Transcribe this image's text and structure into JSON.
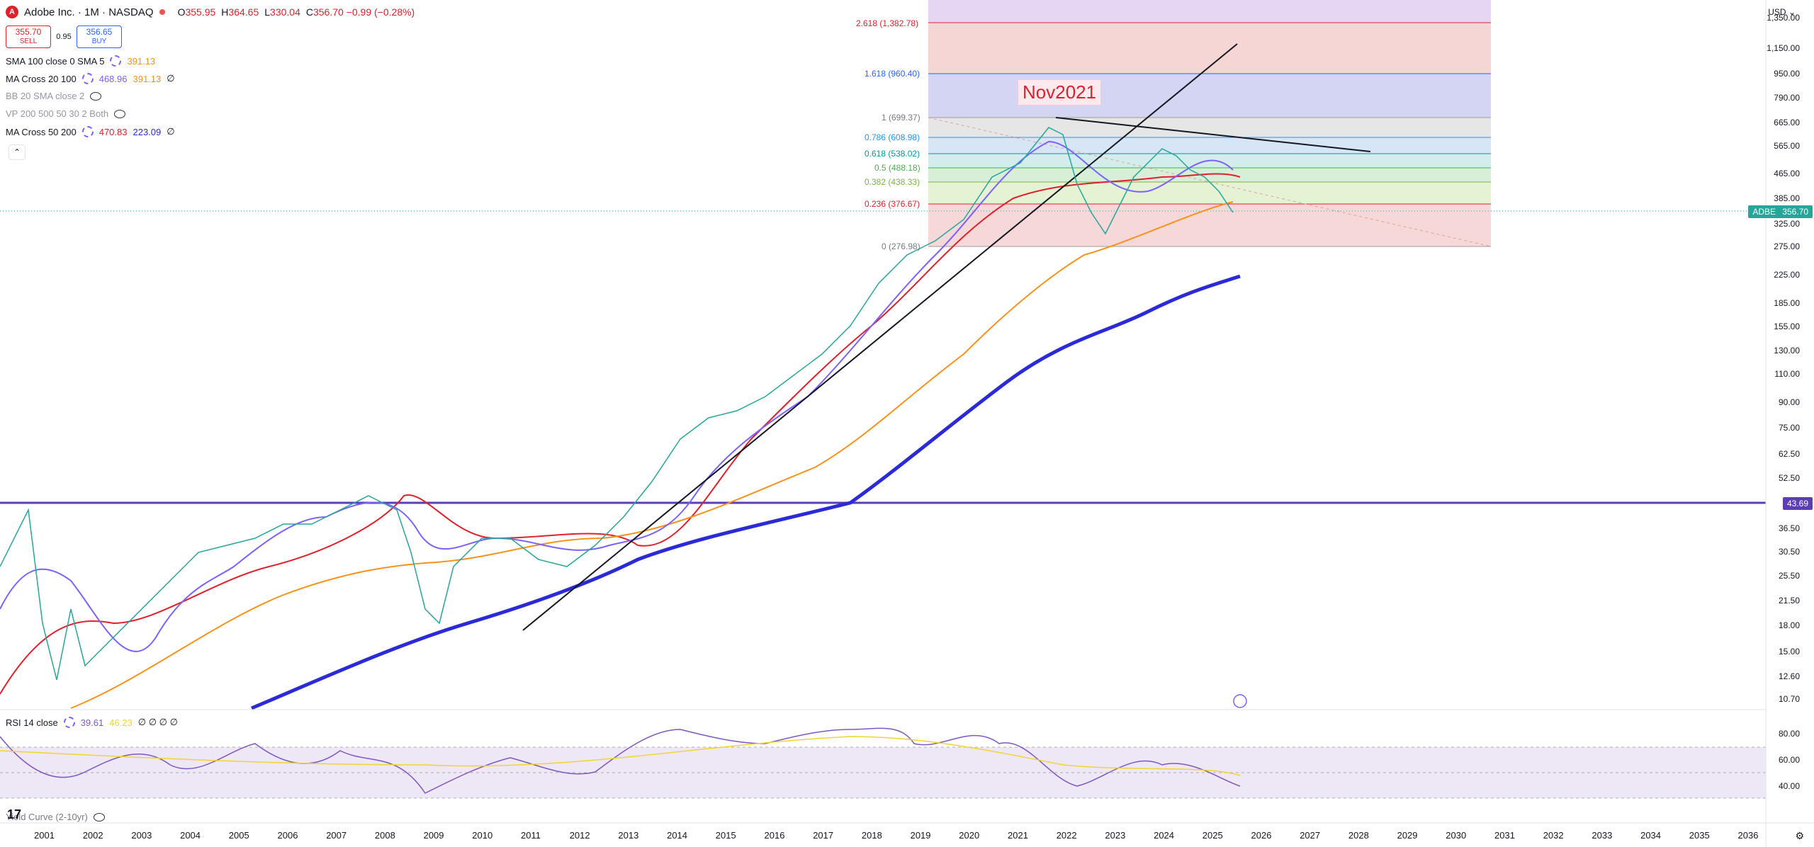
{
  "header": {
    "logo_letter": "A",
    "symbol": "Adobe Inc. · 1M · NASDAQ",
    "ohlc": [
      {
        "k": "O",
        "v": "355.95"
      },
      {
        "k": "H",
        "v": "364.65"
      },
      {
        "k": "L",
        "v": "330.04"
      },
      {
        "k": "C",
        "v": "356.70 −0.99 (−0.28%)"
      }
    ],
    "currency": "USD"
  },
  "trade": {
    "sell_price": "355.70",
    "sell_label": "SELL",
    "spread": "0.95",
    "buy_price": "356.65",
    "buy_label": "BUY"
  },
  "indicators": [
    {
      "name": "SMA 100 close 0 SMA 5",
      "v1": "391.13",
      "v1_color": "#f7931a",
      "v2": "",
      "v2_color": ""
    },
    {
      "name": "MA Cross 20 100",
      "v1": "468.96",
      "v1_color": "#7b61ff",
      "v2": "391.13",
      "v2_color": "#f7931a",
      "extra": "∅"
    },
    {
      "name": "BB 20 SMA close 2",
      "muted": true
    },
    {
      "name": "VP 200 500 50 30 2 Both",
      "muted": true
    },
    {
      "name": "MA Cross 50 200",
      "v1": "470.83",
      "v1_color": "#e0202b",
      "v2": "223.09",
      "v2_color": "#2a2ad8",
      "extra": "∅"
    }
  ],
  "collapse_icon": "chevron-up-icon",
  "annotation": "Nov2021",
  "fib_levels": [
    {
      "label": "2.618 (1,382.78)",
      "color": "#e0202b"
    },
    {
      "label": "1.618 (960.40)",
      "color": "#2962ff"
    },
    {
      "label": "1 (699.37)",
      "color": "#787b86"
    },
    {
      "label": "0.786 (608.98)",
      "color": "#2196f3"
    },
    {
      "label": "0.618 (538.02)",
      "color": "#0097a7"
    },
    {
      "label": "0.5 (488.18)",
      "color": "#4caf50"
    },
    {
      "label": "0.382 (438.33)",
      "color": "#7cb342"
    },
    {
      "label": "0.236 (376.67)",
      "color": "#e0202b"
    },
    {
      "label": "0 (276.98)",
      "color": "#787b86"
    }
  ],
  "price_axis": [
    "1,350.00",
    "1,150.00",
    "950.00",
    "790.00",
    "665.00",
    "565.00",
    "465.00",
    "385.00",
    "325.00",
    "275.00",
    "225.00",
    "185.00",
    "155.00",
    "130.00",
    "110.00",
    "90.00",
    "75.00",
    "62.50",
    "52.50",
    "36.50",
    "30.50",
    "25.50",
    "21.50",
    "18.00",
    "15.00",
    "12.60",
    "10.70"
  ],
  "price_tags": {
    "adbe_label": "ADBE",
    "adbe_value": "356.70",
    "hline_value": "43.69"
  },
  "rsi": {
    "title": "RSI 14 close",
    "v1": "39.61",
    "v2": "46.23",
    "extra": "∅ ∅ ∅ ∅",
    "axis": [
      "80.00",
      "60.00",
      "40.00"
    ]
  },
  "yield_label": "Yield Curve (2-10yr)",
  "time_axis": [
    "2001",
    "2002",
    "2003",
    "2004",
    "2005",
    "2006",
    "2007",
    "2008",
    "2009",
    "2010",
    "2011",
    "2012",
    "2013",
    "2014",
    "2015",
    "2016",
    "2017",
    "2018",
    "2019",
    "2020",
    "2021",
    "2022",
    "2023",
    "2024",
    "2025",
    "2026",
    "2027",
    "2028",
    "2029",
    "2030",
    "2031",
    "2032",
    "2033",
    "2034",
    "2035",
    "2036"
  ],
  "colors": {
    "hline": "#5b3db8",
    "ma20": "#7b61ff",
    "ma100": "#f7931a",
    "ma50": "#e0202b",
    "ma200": "#2a2ad8",
    "rsi": "#7e57c2",
    "rsi_ma": "#f0d530"
  }
}
